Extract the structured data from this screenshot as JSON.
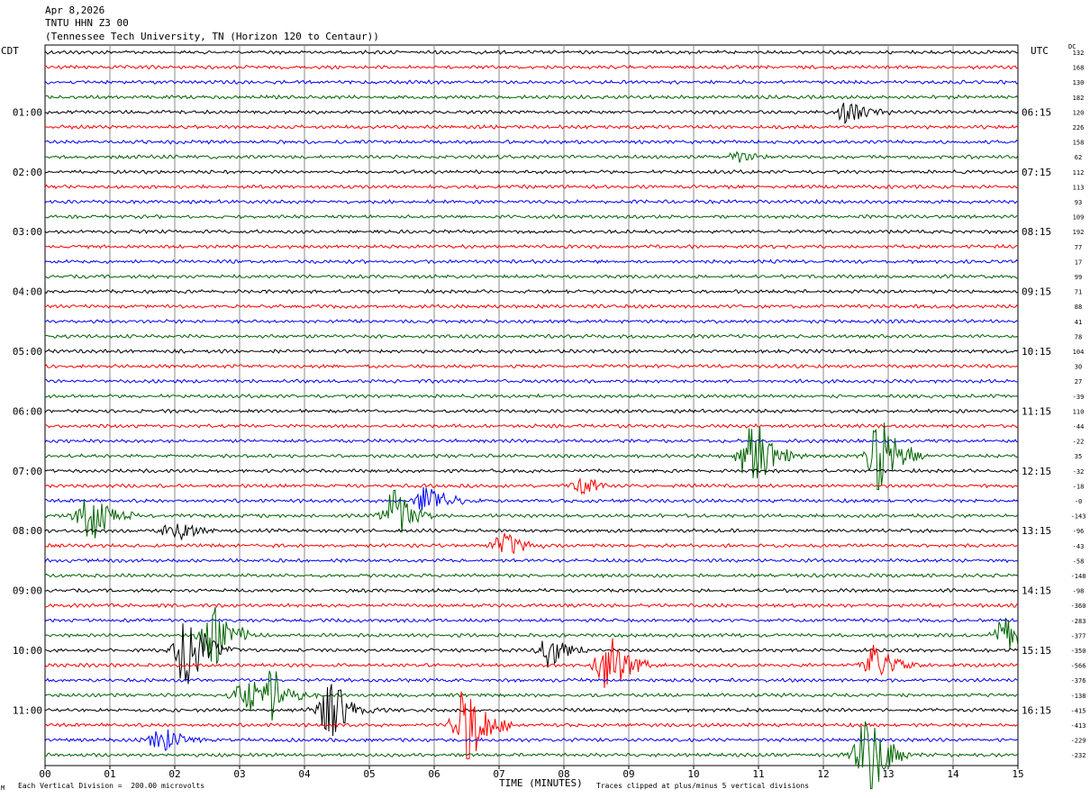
{
  "header": {
    "date": "Apr 8,2026",
    "station": "TNTU HHN Z3 00",
    "location": "(Tennessee Tech University, TN (Horizon 120 to Centaur))"
  },
  "left_timezone": "CDT",
  "right_timezone": "UTC",
  "dc_label": "DC",
  "footer": {
    "scale_text": "Each Vertical Division =  200.00 microvolts",
    "x_label": "TIME (MINUTES)",
    "clip_text": "Traces clipped at plus/minus 5 vertical divisions",
    "corner_mark": "M"
  },
  "colors": {
    "trace_cycle": [
      "#000000",
      "#ff0000",
      "#0000ff",
      "#006400"
    ],
    "grid": "#888888"
  },
  "chart_data": {
    "type": "line",
    "title": "",
    "xlabel": "TIME (MINUTES)",
    "xlim": [
      0,
      15
    ],
    "x_ticks": [
      "00",
      "01",
      "02",
      "03",
      "04",
      "05",
      "06",
      "07",
      "08",
      "09",
      "10",
      "11",
      "12",
      "13",
      "14",
      "15"
    ],
    "trace_count": 48,
    "left_hour_labels": [
      "01:00",
      "02:00",
      "03:00",
      "04:00",
      "05:00",
      "06:00",
      "07:00",
      "08:00",
      "09:00",
      "10:00",
      "11:00"
    ],
    "right_hour_labels": [
      "06:15",
      "07:15",
      "08:15",
      "09:15",
      "10:15",
      "11:15",
      "12:15",
      "13:15",
      "14:15",
      "15:15",
      "16:15"
    ],
    "dc_offsets": [
      "132",
      "168",
      "130",
      "182",
      "120",
      "226",
      "158",
      "62",
      "112",
      "113",
      "93",
      "109",
      "192",
      "77",
      "17",
      "99",
      "71",
      "88",
      "41",
      "78",
      "104",
      "30",
      "27",
      "-39",
      "110",
      "-44",
      "-22",
      "35",
      "-32",
      "-18",
      "-0",
      "-143",
      "-96",
      "-43",
      "-58",
      "-148",
      "-98",
      "-360",
      "-283",
      "-377",
      "-350",
      "-566",
      "-376",
      "-138",
      "-415",
      "-413",
      "-229",
      "-232"
    ],
    "events": [
      {
        "trace": 4,
        "minute": 12.4,
        "amplitude": 1.5
      },
      {
        "trace": 7,
        "minute": 10.7,
        "amplitude": 0.6
      },
      {
        "trace": 27,
        "minute": 10.9,
        "amplitude": 4.5
      },
      {
        "trace": 27,
        "minute": 12.9,
        "amplitude": 5
      },
      {
        "trace": 29,
        "minute": 8.3,
        "amplitude": 1
      },
      {
        "trace": 30,
        "minute": 5.9,
        "amplitude": 2
      },
      {
        "trace": 31,
        "minute": 0.7,
        "amplitude": 3
      },
      {
        "trace": 31,
        "minute": 5.4,
        "amplitude": 3
      },
      {
        "trace": 32,
        "minute": 2.0,
        "amplitude": 1.5
      },
      {
        "trace": 33,
        "minute": 7.1,
        "amplitude": 1.5
      },
      {
        "trace": 39,
        "minute": 2.6,
        "amplitude": 3.5
      },
      {
        "trace": 39,
        "minute": 14.8,
        "amplitude": 2
      },
      {
        "trace": 40,
        "minute": 2.2,
        "amplitude": 5
      },
      {
        "trace": 40,
        "minute": 7.8,
        "amplitude": 2
      },
      {
        "trace": 41,
        "minute": 8.7,
        "amplitude": 3.5
      },
      {
        "trace": 41,
        "minute": 12.8,
        "amplitude": 2.5
      },
      {
        "trace": 43,
        "minute": 3.1,
        "amplitude": 2
      },
      {
        "trace": 43,
        "minute": 3.5,
        "amplitude": 2.5
      },
      {
        "trace": 44,
        "minute": 4.4,
        "amplitude": 3.5
      },
      {
        "trace": 45,
        "minute": 6.5,
        "amplitude": 5
      },
      {
        "trace": 46,
        "minute": 1.8,
        "amplitude": 1.5
      },
      {
        "trace": 47,
        "minute": 12.7,
        "amplitude": 5
      }
    ]
  }
}
